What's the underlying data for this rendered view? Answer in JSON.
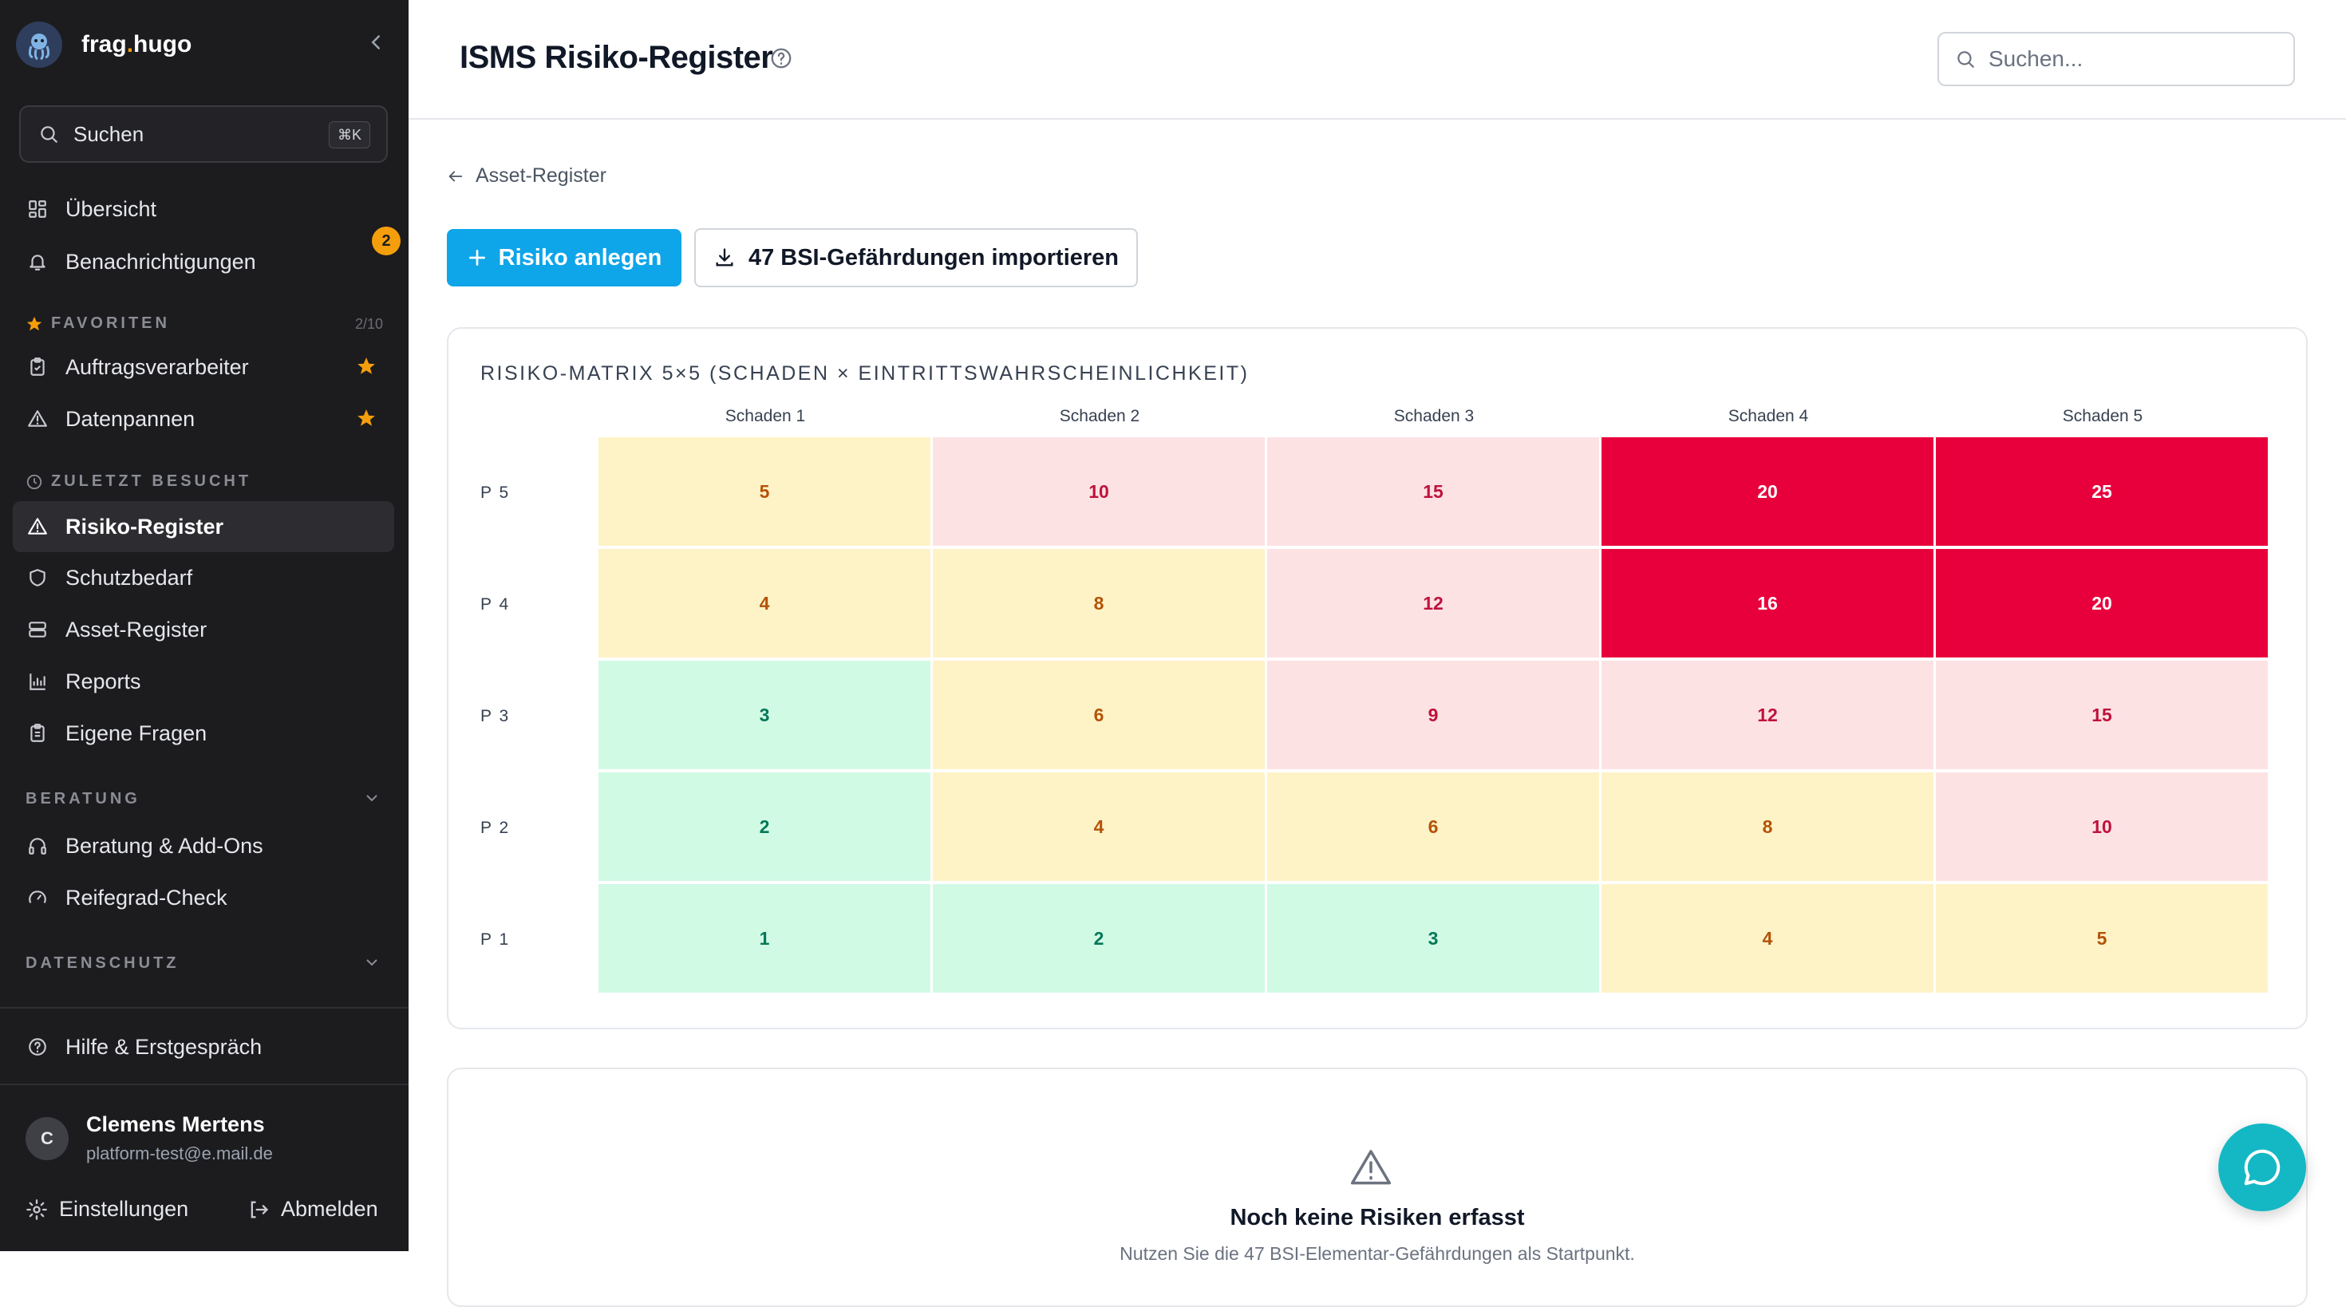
{
  "brand": {
    "name_part1": "frag",
    "name_dot": ".",
    "name_part2": "hugo"
  },
  "sidebar": {
    "search_label": "Suchen",
    "search_shortcut": "⌘K",
    "items": [
      {
        "label": "Übersicht",
        "icon": "grid-icon"
      },
      {
        "label": "Benachrichtigungen",
        "icon": "bell-icon",
        "badge": "2"
      }
    ],
    "favorites": {
      "title": "FAVORITEN",
      "count": "2/10",
      "items": [
        {
          "label": "Auftragsverarbeiter",
          "icon": "clipboard-icon"
        },
        {
          "label": "Datenpannen",
          "icon": "alert-triangle-icon"
        }
      ]
    },
    "recent": {
      "title": "ZULETZT BESUCHT",
      "items": [
        {
          "label": "Risiko-Register",
          "icon": "alert-triangle-icon",
          "active": true
        },
        {
          "label": "Schutzbedarf",
          "icon": "shield-icon"
        },
        {
          "label": "Asset-Register",
          "icon": "server-icon"
        },
        {
          "label": "Reports",
          "icon": "bar-chart-icon"
        },
        {
          "label": "Eigene Fragen",
          "icon": "clipboard-list-icon"
        }
      ]
    },
    "beratung": {
      "title": "BERATUNG",
      "items": [
        {
          "label": "Beratung & Add-Ons",
          "icon": "headphones-icon"
        },
        {
          "label": "Reifegrad-Check",
          "icon": "gauge-icon"
        }
      ]
    },
    "datenschutz": {
      "title": "DATENSCHUTZ"
    },
    "help_label": "Hilfe & Erstgespräch",
    "user": {
      "initial": "C",
      "name": "Clemens Mertens",
      "email": "platform-test@e.mail.de"
    },
    "settings_label": "Einstellungen",
    "logout_label": "Abmelden"
  },
  "header": {
    "title": "ISMS Risiko-Register",
    "search_placeholder": "Suchen..."
  },
  "main": {
    "back_label": "Asset-Register",
    "primary_button": "Risiko anlegen",
    "import_button": "47 BSI-Gefährdungen importieren",
    "matrix": {
      "title": "RISIKO-MATRIX 5×5 (SCHADEN × EINTRITTSWAHRSCHEINLICHKEIT)",
      "columns": [
        "Schaden 1",
        "Schaden 2",
        "Schaden 3",
        "Schaden 4",
        "Schaden 5"
      ],
      "rows": [
        {
          "label": "P 5",
          "values": [
            "5",
            "10",
            "15",
            "20",
            "25"
          ],
          "levels": [
            "med",
            "high",
            "high",
            "crit",
            "crit"
          ]
        },
        {
          "label": "P 4",
          "values": [
            "4",
            "8",
            "12",
            "16",
            "20"
          ],
          "levels": [
            "med",
            "med",
            "high",
            "crit",
            "crit"
          ]
        },
        {
          "label": "P 3",
          "values": [
            "3",
            "6",
            "9",
            "12",
            "15"
          ],
          "levels": [
            "low",
            "med",
            "high",
            "high",
            "high"
          ]
        },
        {
          "label": "P 2",
          "values": [
            "2",
            "4",
            "6",
            "8",
            "10"
          ],
          "levels": [
            "low",
            "med",
            "med",
            "med",
            "high"
          ]
        },
        {
          "label": "P 1",
          "values": [
            "1",
            "2",
            "3",
            "4",
            "5"
          ],
          "levels": [
            "low",
            "low",
            "low",
            "med",
            "med"
          ]
        }
      ]
    },
    "empty_state": {
      "title": "Noch keine Risiken erfasst",
      "subtitle": "Nutzen Sie die 47 BSI-Elementar-Gefährdungen als Startpunkt."
    }
  },
  "colors": {
    "primary": "#0ea5e9",
    "sidebar_bg": "#1c1c1f",
    "accent_badge": "#f59e0b",
    "critical": "#e8003c",
    "chat_fab": "#14b8c4"
  }
}
